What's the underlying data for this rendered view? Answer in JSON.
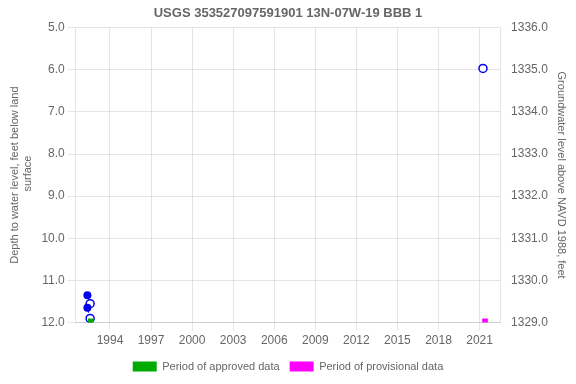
{
  "chart_data": {
    "type": "scatter",
    "title": "USGS 353527097591901 13N-07W-19 BBB 1",
    "ylabel": "Depth to water level, feet below land\n surface",
    "y2label": "Groundwater level above NAVD 1988, feet",
    "xlim": [
      1991.5,
      2022.5
    ],
    "xticks": [
      1994,
      1997,
      2000,
      2003,
      2006,
      2009,
      2012,
      2015,
      2018,
      2021
    ],
    "ylim": [
      12.0,
      5.0
    ],
    "yticks": [
      {
        "value": 5.0,
        "label": "5.0"
      },
      {
        "value": 6.0,
        "label": "6.0"
      },
      {
        "value": 7.0,
        "label": "7.0"
      },
      {
        "value": 8.0,
        "label": "8.0"
      },
      {
        "value": 9.0,
        "label": "9.0"
      },
      {
        "value": 10.0,
        "label": "10.0"
      },
      {
        "value": 11.0,
        "label": "11.0"
      },
      {
        "value": 12.0,
        "label": "12.0"
      }
    ],
    "y2lim": [
      1329.0,
      1336.0
    ],
    "y2ticks": [
      {
        "value": 1329.0,
        "label": "1329.0"
      },
      {
        "value": 1330.0,
        "label": "1330.0"
      },
      {
        "value": 1331.0,
        "label": "1331.0"
      },
      {
        "value": 1332.0,
        "label": "1332.0"
      },
      {
        "value": 1333.0,
        "label": "1333.0"
      },
      {
        "value": 1334.0,
        "label": "1334.0"
      },
      {
        "value": 1335.0,
        "label": "1335.0"
      },
      {
        "value": 1336.0,
        "label": "1336.0"
      }
    ],
    "grid": true,
    "legend": "bottom",
    "series": [
      {
        "name": "Period of approved data",
        "type": "scatter",
        "marker": "square",
        "color": "#00aa00",
        "x": [
          1992.6
        ],
        "values": [
          11.97
        ]
      },
      {
        "name": "Period of provisional data",
        "type": "scatter",
        "marker": "square",
        "color": "#ff00ff",
        "x": [
          2021.4
        ],
        "values": [
          11.97
        ]
      },
      {
        "type": "scatter",
        "marker": "circle",
        "color": "#0000ee",
        "x": [
          1992.35,
          1992.35
        ],
        "values": [
          11.35,
          11.65
        ]
      },
      {
        "type": "scatter",
        "marker": "open_circle",
        "color": "#0000ee",
        "x": [
          1992.55,
          1992.55,
          2021.25
        ],
        "values": [
          11.9,
          11.55,
          5.97
        ]
      },
      {
        "type": "line",
        "line_style": "dashed",
        "color": "#0000ee",
        "x": [
          1992.35,
          1992.55
        ],
        "values": [
          11.35,
          11.55
        ]
      },
      {
        "type": "line",
        "line_style": "dashed",
        "color": "#0000ee",
        "x": [
          1992.35,
          1992.55
        ],
        "values": [
          11.65,
          11.9
        ]
      }
    ]
  }
}
